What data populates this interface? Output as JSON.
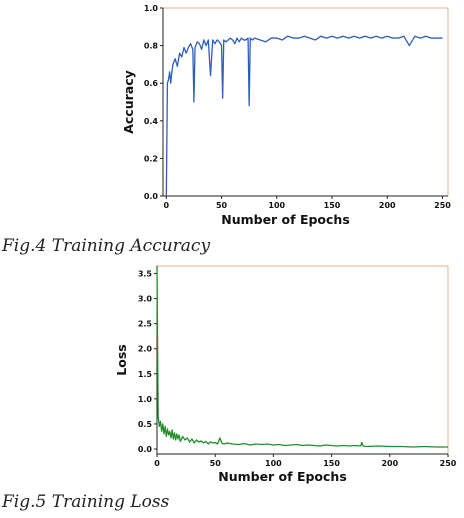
{
  "figures": [
    {
      "caption": "Fig.4 Training Accuracy"
    },
    {
      "caption": "Fig.5 Training Loss"
    }
  ],
  "chart_data": [
    {
      "type": "line",
      "title": "",
      "xlabel": "Number of Epochs",
      "ylabel": "Accuracy",
      "xlim": [
        -3,
        255
      ],
      "ylim": [
        0,
        1.0
      ],
      "xticks": [
        0,
        50,
        100,
        150,
        200,
        250
      ],
      "yticks": [
        0.0,
        0.2,
        0.4,
        0.6,
        0.8,
        1.0
      ],
      "xtick_labels": [
        "0",
        "50",
        "100",
        "150",
        "200",
        "250"
      ],
      "ytick_labels": [
        "0.0",
        "0.2",
        "0.4",
        "0.6",
        "0.8",
        "1.0"
      ],
      "grid": false,
      "frame_color": "#e8b08a",
      "series": [
        {
          "color": "#2e5fb8",
          "x": [
            0,
            1,
            2,
            3,
            4,
            5,
            6,
            8,
            10,
            12,
            14,
            16,
            18,
            20,
            22,
            24,
            25,
            26,
            28,
            30,
            32,
            34,
            36,
            38,
            40,
            42,
            44,
            46,
            48,
            50,
            51,
            52,
            54,
            56,
            58,
            60,
            62,
            64,
            66,
            68,
            70,
            72,
            74,
            75,
            76,
            78,
            80,
            85,
            90,
            95,
            100,
            105,
            110,
            115,
            120,
            125,
            130,
            135,
            140,
            145,
            150,
            155,
            160,
            165,
            170,
            175,
            180,
            185,
            190,
            195,
            200,
            205,
            210,
            215,
            220,
            225,
            230,
            235,
            240,
            245,
            250
          ],
          "y": [
            0.0,
            0.6,
            0.62,
            0.66,
            0.6,
            0.66,
            0.7,
            0.73,
            0.69,
            0.76,
            0.74,
            0.79,
            0.76,
            0.79,
            0.81,
            0.78,
            0.5,
            0.79,
            0.82,
            0.81,
            0.78,
            0.83,
            0.8,
            0.83,
            0.64,
            0.83,
            0.81,
            0.83,
            0.82,
            0.8,
            0.52,
            0.83,
            0.82,
            0.83,
            0.84,
            0.83,
            0.81,
            0.84,
            0.82,
            0.84,
            0.83,
            0.83,
            0.84,
            0.48,
            0.84,
            0.83,
            0.84,
            0.83,
            0.82,
            0.84,
            0.84,
            0.83,
            0.85,
            0.84,
            0.84,
            0.85,
            0.84,
            0.83,
            0.85,
            0.84,
            0.85,
            0.84,
            0.85,
            0.84,
            0.85,
            0.84,
            0.85,
            0.84,
            0.85,
            0.84,
            0.85,
            0.84,
            0.84,
            0.85,
            0.8,
            0.85,
            0.84,
            0.85,
            0.84,
            0.84,
            0.84
          ]
        }
      ]
    },
    {
      "type": "line",
      "title": "",
      "xlabel": "Number of Epochs",
      "ylabel": "Loss",
      "xlim": [
        0,
        250
      ],
      "ylim": [
        -0.1,
        3.65
      ],
      "xticks": [
        0,
        50,
        100,
        150,
        200,
        250
      ],
      "yticks": [
        0.0,
        0.5,
        1.0,
        1.5,
        2.0,
        2.5,
        3.0,
        3.5
      ],
      "xtick_labels": [
        "0",
        "50",
        "100",
        "150",
        "200",
        "250"
      ],
      "ytick_labels": [
        "0.0",
        "0.5",
        "1.0",
        "1.5",
        "2.0",
        "2.5",
        "3.0",
        "3.5"
      ],
      "grid": false,
      "frame_color": "#e8b08a",
      "series": [
        {
          "color": "#1f8f2a",
          "x": [
            0,
            1,
            2,
            3,
            4,
            5,
            6,
            7,
            8,
            9,
            10,
            11,
            12,
            13,
            14,
            15,
            16,
            17,
            18,
            19,
            20,
            22,
            24,
            26,
            28,
            30,
            32,
            34,
            36,
            38,
            40,
            42,
            44,
            46,
            48,
            50,
            52,
            54,
            56,
            58,
            60,
            65,
            70,
            75,
            80,
            85,
            90,
            95,
            100,
            105,
            110,
            115,
            120,
            125,
            130,
            135,
            140,
            145,
            150,
            155,
            160,
            165,
            170,
            175,
            176,
            177,
            180,
            190,
            200,
            210,
            220,
            230,
            240,
            250
          ],
          "y": [
            3.6,
            0.65,
            0.45,
            0.55,
            0.35,
            0.5,
            0.3,
            0.45,
            0.25,
            0.4,
            0.28,
            0.35,
            0.22,
            0.38,
            0.2,
            0.32,
            0.18,
            0.3,
            0.2,
            0.28,
            0.15,
            0.25,
            0.18,
            0.22,
            0.14,
            0.2,
            0.12,
            0.18,
            0.14,
            0.16,
            0.12,
            0.15,
            0.1,
            0.14,
            0.12,
            0.13,
            0.1,
            0.22,
            0.11,
            0.1,
            0.12,
            0.1,
            0.09,
            0.11,
            0.08,
            0.1,
            0.09,
            0.1,
            0.08,
            0.09,
            0.07,
            0.08,
            0.09,
            0.07,
            0.08,
            0.07,
            0.06,
            0.08,
            0.07,
            0.06,
            0.07,
            0.06,
            0.07,
            0.06,
            0.13,
            0.06,
            0.05,
            0.06,
            0.05,
            0.05,
            0.04,
            0.05,
            0.04,
            0.04
          ]
        }
      ]
    }
  ]
}
